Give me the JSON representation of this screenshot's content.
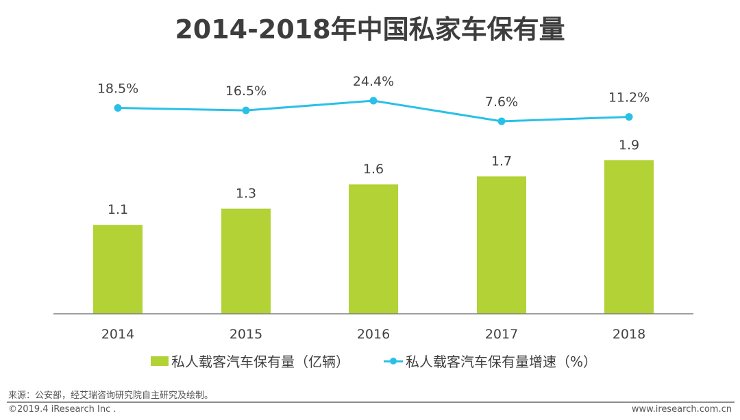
{
  "chart_data": {
    "type": "bar",
    "title": "2014-2018年中国私家车保有量",
    "categories": [
      "2014",
      "2015",
      "2016",
      "2017",
      "2018"
    ],
    "series": [
      {
        "name": "私人载客汽车保有量（亿辆）",
        "type": "bar",
        "values": [
          1.1,
          1.3,
          1.6,
          1.7,
          1.9
        ],
        "labels": [
          "1.1",
          "1.3",
          "1.6",
          "1.7",
          "1.9"
        ],
        "color": "#b2d235"
      },
      {
        "name": "私人载客汽车保有量增速（%）",
        "type": "line",
        "values": [
          18.5,
          16.5,
          24.4,
          7.6,
          11.2
        ],
        "labels": [
          "18.5%",
          "16.5%",
          "24.4%",
          "7.6%",
          "11.2%"
        ],
        "color": "#29c0e8"
      }
    ],
    "xlabel": "",
    "ylabel": "",
    "grid": false,
    "legend_position": "bottom"
  },
  "legend": {
    "bar_label": "私人载客汽车保有量（亿辆）",
    "line_label": "私人载客汽车保有量增速（%）"
  },
  "footer": {
    "source": "来源：公安部，经艾瑞咨询研究院自主研究及绘制。",
    "copyright": "©2019.4 iResearch Inc .",
    "website": "www.iresearch.com.cn"
  },
  "axis_color": "#7f7f7f"
}
